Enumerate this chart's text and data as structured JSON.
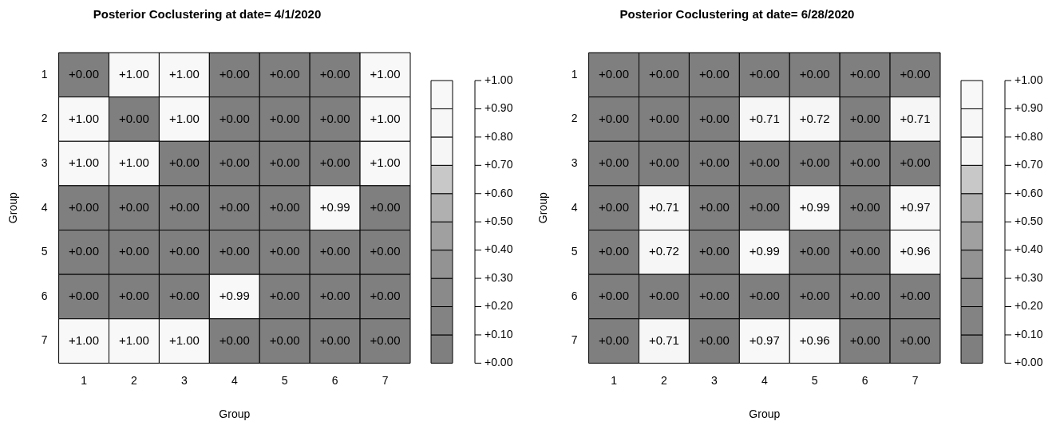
{
  "chart_data": [
    {
      "type": "heatmap",
      "title": "Posterior Coclustering at date= 4/1/2020",
      "xlabel": "Group",
      "ylabel": "Group",
      "categories": [
        "1",
        "2",
        "3",
        "4",
        "5",
        "6",
        "7"
      ],
      "y_categories": [
        "1",
        "2",
        "3",
        "4",
        "5",
        "6",
        "7"
      ],
      "cells": [
        [
          0,
          1,
          1,
          0,
          0,
          0,
          1
        ],
        [
          1,
          0,
          1,
          0,
          0,
          0,
          1
        ],
        [
          1,
          1,
          0,
          0,
          0,
          0,
          1
        ],
        [
          0,
          0,
          0,
          0,
          0,
          0.99,
          0
        ],
        [
          0,
          0,
          0,
          0,
          0,
          0,
          0
        ],
        [
          0,
          0,
          0,
          0.99,
          0,
          0,
          0
        ],
        [
          1,
          1,
          1,
          0,
          0,
          0,
          0
        ]
      ],
      "cell_labels": [
        [
          "+0.00",
          "+1.00",
          "+1.00",
          "+0.00",
          "+0.00",
          "+0.00",
          "+1.00"
        ],
        [
          "+1.00",
          "+0.00",
          "+1.00",
          "+0.00",
          "+0.00",
          "+0.00",
          "+1.00"
        ],
        [
          "+1.00",
          "+1.00",
          "+0.00",
          "+0.00",
          "+0.00",
          "+0.00",
          "+1.00"
        ],
        [
          "+0.00",
          "+0.00",
          "+0.00",
          "+0.00",
          "+0.00",
          "+0.99",
          "+0.00"
        ],
        [
          "+0.00",
          "+0.00",
          "+0.00",
          "+0.00",
          "+0.00",
          "+0.00",
          "+0.00"
        ],
        [
          "+0.00",
          "+0.00",
          "+0.00",
          "+0.99",
          "+0.00",
          "+0.00",
          "+0.00"
        ],
        [
          "+1.00",
          "+1.00",
          "+1.00",
          "+0.00",
          "+0.00",
          "+0.00",
          "+0.00"
        ]
      ],
      "clim": [
        0,
        1
      ],
      "cticks": [
        {
          "value": 0,
          "label": "+0.00"
        },
        {
          "value": 0.1,
          "label": "+0.10"
        },
        {
          "value": 0.2,
          "label": "+0.20"
        },
        {
          "value": 0.3,
          "label": "+0.30"
        },
        {
          "value": 0.4,
          "label": "+0.40"
        },
        {
          "value": 0.5,
          "label": "+0.50"
        },
        {
          "value": 0.6,
          "label": "+0.60"
        },
        {
          "value": 0.7,
          "label": "+0.70"
        },
        {
          "value": 0.8,
          "label": "+0.80"
        },
        {
          "value": 0.9,
          "label": "+0.90"
        },
        {
          "value": 1,
          "label": "+1.00"
        }
      ]
    },
    {
      "type": "heatmap",
      "title": "Posterior Coclustering at date= 6/28/2020",
      "xlabel": "Group",
      "ylabel": "Group",
      "categories": [
        "1",
        "2",
        "3",
        "4",
        "5",
        "6",
        "7"
      ],
      "y_categories": [
        "1",
        "2",
        "3",
        "4",
        "5",
        "6",
        "7"
      ],
      "cells": [
        [
          0,
          0,
          0,
          0,
          0,
          0,
          0
        ],
        [
          0,
          0,
          0,
          0.71,
          0.72,
          0,
          0.71
        ],
        [
          0,
          0,
          0,
          0,
          0,
          0,
          0
        ],
        [
          0,
          0.71,
          0,
          0,
          0.99,
          0,
          0.97
        ],
        [
          0,
          0.72,
          0,
          0.99,
          0,
          0,
          0.96
        ],
        [
          0,
          0,
          0,
          0,
          0,
          0,
          0
        ],
        [
          0,
          0.71,
          0,
          0.97,
          0.96,
          0,
          0
        ]
      ],
      "cell_labels": [
        [
          "+0.00",
          "+0.00",
          "+0.00",
          "+0.00",
          "+0.00",
          "+0.00",
          "+0.00"
        ],
        [
          "+0.00",
          "+0.00",
          "+0.00",
          "+0.71",
          "+0.72",
          "+0.00",
          "+0.71"
        ],
        [
          "+0.00",
          "+0.00",
          "+0.00",
          "+0.00",
          "+0.00",
          "+0.00",
          "+0.00"
        ],
        [
          "+0.00",
          "+0.71",
          "+0.00",
          "+0.00",
          "+0.99",
          "+0.00",
          "+0.97"
        ],
        [
          "+0.00",
          "+0.72",
          "+0.00",
          "+0.99",
          "+0.00",
          "+0.00",
          "+0.96"
        ],
        [
          "+0.00",
          "+0.00",
          "+0.00",
          "+0.00",
          "+0.00",
          "+0.00",
          "+0.00"
        ],
        [
          "+0.00",
          "+0.71",
          "+0.00",
          "+0.97",
          "+0.96",
          "+0.00",
          "+0.00"
        ]
      ],
      "clim": [
        0,
        1
      ],
      "cticks": [
        {
          "value": 0,
          "label": "+0.00"
        },
        {
          "value": 0.1,
          "label": "+0.10"
        },
        {
          "value": 0.2,
          "label": "+0.20"
        },
        {
          "value": 0.3,
          "label": "+0.30"
        },
        {
          "value": 0.4,
          "label": "+0.40"
        },
        {
          "value": 0.5,
          "label": "+0.50"
        },
        {
          "value": 0.6,
          "label": "+0.60"
        },
        {
          "value": 0.7,
          "label": "+0.70"
        },
        {
          "value": 0.8,
          "label": "+0.80"
        },
        {
          "value": 0.9,
          "label": "+0.90"
        },
        {
          "value": 1,
          "label": "+1.00"
        }
      ]
    }
  ]
}
